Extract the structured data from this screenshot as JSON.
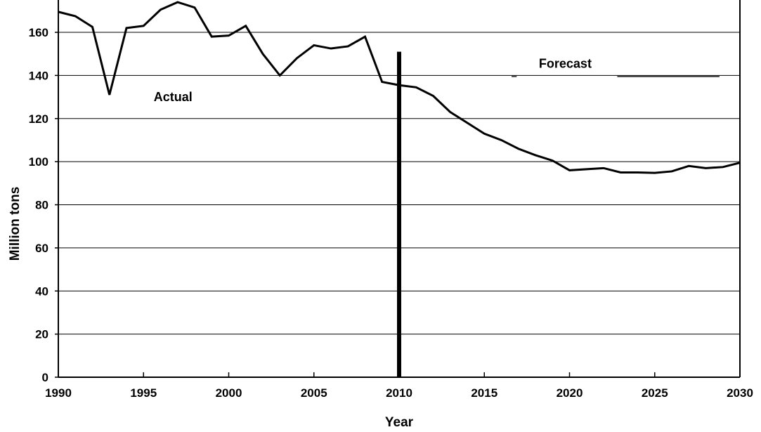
{
  "chart_data": {
    "type": "line",
    "xlabel": "Year",
    "ylabel": "Million tons",
    "xlim": [
      1990,
      2030
    ],
    "ylim": [
      0,
      175
    ],
    "x_ticks": [
      1990,
      1995,
      2000,
      2005,
      2010,
      2015,
      2020,
      2025,
      2030
    ],
    "y_ticks": [
      0,
      20,
      40,
      60,
      80,
      100,
      120,
      140,
      160
    ],
    "grid": "horizontal",
    "divider_year": 2010,
    "annotations": {
      "actual": "Actual",
      "forecast": "Forecast"
    },
    "series": [
      {
        "x": [
          1990,
          1991,
          1992,
          1993,
          1994,
          1995,
          1996,
          1997,
          1998,
          1999,
          2000,
          2001,
          2002,
          2003,
          2004,
          2005,
          2006,
          2007,
          2008,
          2009,
          2010,
          2011,
          2012,
          2013,
          2014,
          2015,
          2016,
          2017,
          2018,
          2019,
          2020,
          2021,
          2022,
          2023,
          2024,
          2025,
          2026,
          2027,
          2028,
          2029,
          2030
        ],
        "values": [
          169.5,
          167.5,
          162.5,
          131,
          162,
          163,
          170.5,
          174,
          171.5,
          158,
          158.5,
          163,
          150,
          140,
          148,
          154,
          152.5,
          153.5,
          158,
          137,
          135.5,
          134.5,
          130.5,
          123,
          118,
          113,
          110,
          106,
          103,
          100.5,
          96,
          96.5,
          97,
          95,
          95,
          94.8,
          95.5,
          98,
          97,
          97.5,
          99.5
        ],
        "color": "#000000"
      }
    ]
  }
}
